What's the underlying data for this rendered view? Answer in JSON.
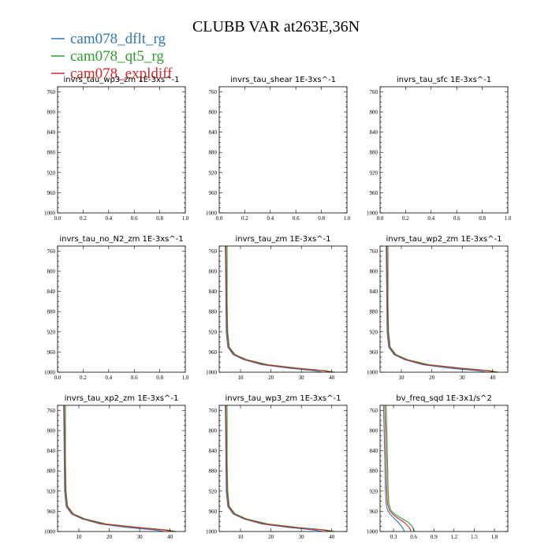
{
  "title": "CLUBB VAR at263E,36N",
  "legend": [
    {
      "name": "cam078_dflt_rg",
      "color": "#2f79b5"
    },
    {
      "name": "cam078_qt5_rg",
      "color": "#2ca02c"
    },
    {
      "name": "cam078_expldiff",
      "color": "#d62728"
    }
  ],
  "chart_data": [
    {
      "type": "line",
      "title": "invrs_tau_wp3_zm  1E-3xs^-1",
      "xlim": [
        0,
        1
      ],
      "ylim": [
        1000,
        750
      ],
      "xticks": [
        0.0,
        0.2,
        0.4,
        0.6,
        0.8,
        1.0
      ],
      "xticklabels": [
        "0.0",
        "0.2",
        "0.4",
        "0.6",
        "0.8",
        "1.0"
      ],
      "yticks": [
        760,
        800,
        840,
        880,
        920,
        960,
        1000
      ],
      "series": []
    },
    {
      "type": "line",
      "title": "invrs_tau_shear  1E-3xs^-1",
      "xlim": [
        0,
        1
      ],
      "ylim": [
        1000,
        750
      ],
      "xticks": [
        0.0,
        0.2,
        0.4,
        0.6,
        0.8,
        1.0
      ],
      "xticklabels": [
        "0.0",
        "0.2",
        "0.4",
        "0.6",
        "0.8",
        "1.0"
      ],
      "yticks": [
        760,
        800,
        840,
        880,
        920,
        960,
        1000
      ],
      "series": []
    },
    {
      "type": "line",
      "title": "invrs_tau_sfc  1E-3xs^-1",
      "xlim": [
        0,
        1
      ],
      "ylim": [
        1000,
        750
      ],
      "xticks": [
        0.0,
        0.2,
        0.4,
        0.6,
        0.8,
        1.0
      ],
      "xticklabels": [
        "0.0",
        "0.2",
        "0.4",
        "0.6",
        "0.8",
        "1.0"
      ],
      "yticks": [
        760,
        800,
        840,
        880,
        920,
        960,
        1000
      ],
      "series": []
    },
    {
      "type": "line",
      "title": "invrs_tau_no_N2_zm  1E-3xs^-1",
      "xlim": [
        0,
        1
      ],
      "ylim": [
        1000,
        750
      ],
      "xticks": [
        0.0,
        0.2,
        0.4,
        0.6,
        0.8,
        1.0
      ],
      "xticklabels": [
        "0.0",
        "0.2",
        "0.4",
        "0.6",
        "0.8",
        "1.0"
      ],
      "yticks": [
        760,
        800,
        840,
        880,
        920,
        960,
        1000
      ],
      "series": []
    },
    {
      "type": "line",
      "title": "invrs_tau_zm  1E-3xs^-1",
      "xlim": [
        3,
        45
      ],
      "ylim": [
        1000,
        750
      ],
      "xticks": [
        10,
        20,
        30,
        40
      ],
      "xticklabels": [
        "10",
        "20",
        "30",
        "40"
      ],
      "yticks": [
        760,
        800,
        840,
        880,
        920,
        960,
        1000
      ],
      "series": [
        {
          "y": [
            750,
            800,
            860,
            920,
            950,
            965,
            975,
            985,
            992,
            997,
            1000
          ],
          "x": [
            5.0,
            5.1,
            5.2,
            5.3,
            5.8,
            7.5,
            11,
            17,
            26,
            34,
            37
          ]
        },
        {
          "y": [
            750,
            800,
            860,
            920,
            950,
            965,
            975,
            985,
            992,
            997,
            1000
          ],
          "x": [
            5.6,
            5.6,
            5.6,
            5.8,
            6.3,
            8.2,
            12,
            19,
            29,
            38,
            41
          ]
        },
        {
          "y": [
            750,
            800,
            860,
            920,
            950,
            965,
            975,
            985,
            992,
            997,
            1000
          ],
          "x": [
            5.2,
            5.3,
            5.4,
            5.6,
            6.1,
            7.9,
            11.5,
            18,
            28,
            37,
            40
          ]
        }
      ]
    },
    {
      "type": "line",
      "title": "invrs_tau_wp2_zm  1E-3xs^-1",
      "xlim": [
        3,
        45
      ],
      "ylim": [
        1000,
        750
      ],
      "xticks": [
        10,
        20,
        30,
        40
      ],
      "xticklabels": [
        "10",
        "20",
        "30",
        "40"
      ],
      "yticks": [
        760,
        800,
        840,
        880,
        920,
        960,
        1000
      ],
      "series": [
        {
          "y": [
            750,
            800,
            860,
            920,
            950,
            965,
            975,
            985,
            992,
            997,
            1000
          ],
          "x": [
            5.0,
            5.1,
            5.2,
            5.3,
            5.8,
            7.5,
            11,
            17,
            26,
            35,
            38
          ]
        },
        {
          "y": [
            750,
            800,
            860,
            920,
            950,
            965,
            975,
            985,
            992,
            997,
            1000
          ],
          "x": [
            5.6,
            5.6,
            5.6,
            5.8,
            6.3,
            8.2,
            12,
            19,
            30,
            39,
            42
          ]
        },
        {
          "y": [
            750,
            800,
            860,
            920,
            950,
            965,
            975,
            985,
            992,
            997,
            1000
          ],
          "x": [
            5.2,
            5.3,
            5.4,
            5.6,
            6.1,
            7.9,
            11.5,
            18,
            29,
            38,
            41
          ]
        }
      ]
    },
    {
      "type": "line",
      "title": "invrs_tau_xp2_zm  1E-3xs^-1",
      "xlim": [
        3,
        45
      ],
      "ylim": [
        1000,
        750
      ],
      "xticks": [
        10,
        20,
        30,
        40
      ],
      "xticklabels": [
        "10",
        "20",
        "30",
        "40"
      ],
      "yticks": [
        760,
        800,
        840,
        880,
        920,
        960,
        1000
      ],
      "series": [
        {
          "y": [
            750,
            800,
            860,
            920,
            950,
            965,
            975,
            985,
            992,
            997,
            1000
          ],
          "x": [
            5.0,
            5.1,
            5.2,
            5.3,
            5.8,
            7.5,
            11,
            17,
            26,
            35,
            38
          ]
        },
        {
          "y": [
            750,
            800,
            860,
            920,
            950,
            965,
            975,
            985,
            992,
            997,
            1000
          ],
          "x": [
            5.6,
            5.6,
            5.6,
            5.8,
            6.3,
            8.2,
            12,
            19,
            30,
            39,
            42
          ]
        },
        {
          "y": [
            750,
            800,
            860,
            920,
            950,
            965,
            975,
            985,
            992,
            997,
            1000
          ],
          "x": [
            5.2,
            5.3,
            5.4,
            5.6,
            6.1,
            7.9,
            11.5,
            18,
            29,
            38,
            41
          ]
        }
      ]
    },
    {
      "type": "line",
      "title": "invrs_tau_wp3_zm  1E-3xs^-1",
      "xlim": [
        3,
        45
      ],
      "ylim": [
        1000,
        750
      ],
      "xticks": [
        10,
        20,
        30,
        40
      ],
      "xticklabels": [
        "10",
        "20",
        "30",
        "40"
      ],
      "yticks": [
        760,
        800,
        840,
        880,
        920,
        960,
        1000
      ],
      "series": [
        {
          "y": [
            750,
            800,
            860,
            920,
            950,
            965,
            975,
            985,
            992,
            997,
            1000
          ],
          "x": [
            5.0,
            5.1,
            5.2,
            5.3,
            5.8,
            7.5,
            11,
            17,
            26,
            34,
            37
          ]
        },
        {
          "y": [
            750,
            800,
            860,
            920,
            950,
            965,
            975,
            985,
            992,
            997,
            1000
          ],
          "x": [
            5.6,
            5.6,
            5.6,
            5.8,
            6.3,
            8.2,
            12,
            19,
            29,
            38,
            41
          ]
        },
        {
          "y": [
            750,
            800,
            860,
            920,
            950,
            965,
            975,
            985,
            992,
            997,
            1000
          ],
          "x": [
            5.2,
            5.3,
            5.4,
            5.6,
            6.1,
            7.9,
            11.5,
            18,
            28,
            37,
            40
          ]
        }
      ]
    },
    {
      "type": "line",
      "title": "bv_freq_sqd  1E-3x1/s^2",
      "xlim": [
        0.1,
        2.0
      ],
      "ylim": [
        1000,
        750
      ],
      "xticks": [
        0.3,
        0.6,
        0.9,
        1.2,
        1.5,
        1.8
      ],
      "xticklabels": [
        "0.3",
        "0.6",
        "0.9",
        "1.2",
        "1.5",
        "1.8"
      ],
      "yticks": [
        760,
        800,
        840,
        880,
        920,
        960,
        1000
      ],
      "series": [
        {
          "y": [
            750,
            800,
            860,
            920,
            945,
            958,
            966,
            974,
            982,
            990,
            996,
            1000
          ],
          "x": [
            0.15,
            0.16,
            0.17,
            0.18,
            0.19,
            0.21,
            0.25,
            0.31,
            0.37,
            0.42,
            0.45,
            0.46
          ]
        },
        {
          "y": [
            750,
            800,
            860,
            920,
            945,
            958,
            966,
            974,
            982,
            990,
            996,
            1000
          ],
          "x": [
            0.19,
            0.2,
            0.21,
            0.22,
            0.23,
            0.26,
            0.32,
            0.42,
            0.52,
            0.58,
            0.6,
            0.61
          ]
        },
        {
          "y": [
            750,
            800,
            860,
            920,
            945,
            958,
            966,
            974,
            982,
            990,
            996,
            1000
          ],
          "x": [
            0.17,
            0.18,
            0.19,
            0.2,
            0.21,
            0.24,
            0.29,
            0.37,
            0.46,
            0.52,
            0.55,
            0.56
          ]
        }
      ]
    }
  ]
}
